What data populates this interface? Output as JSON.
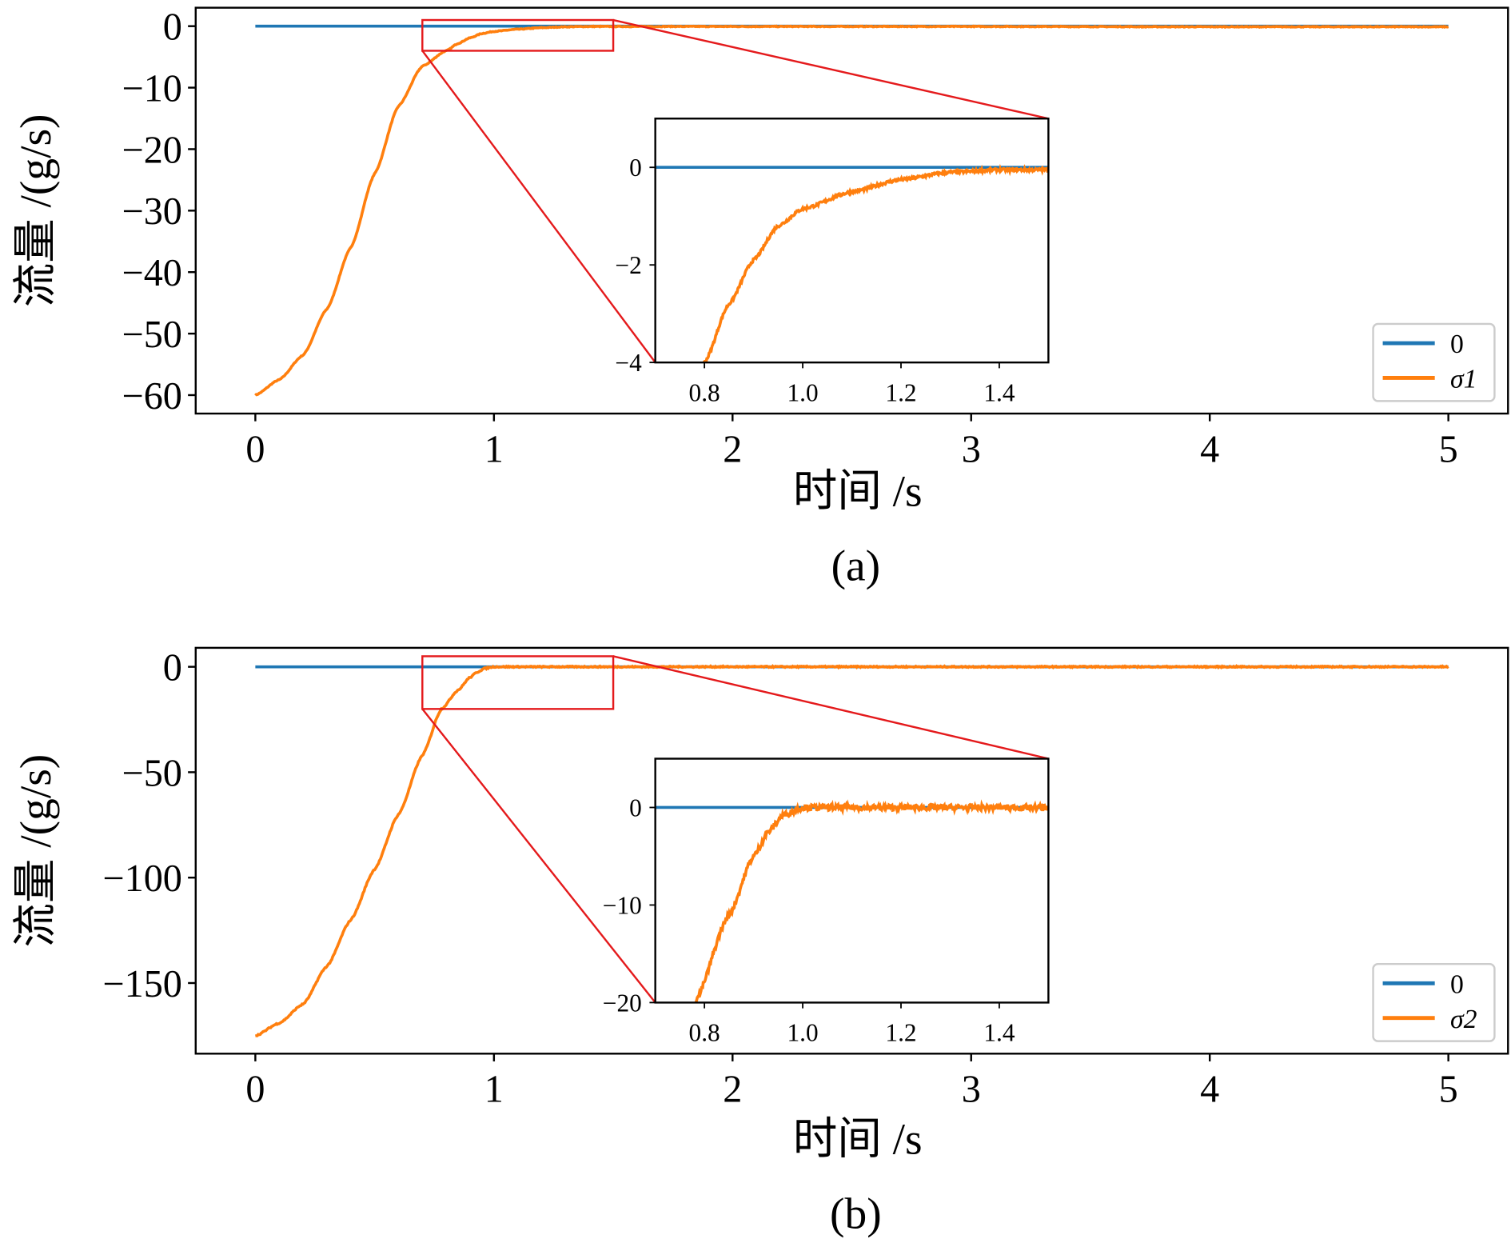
{
  "chart_data": [
    {
      "type": "line",
      "caption": "(a)",
      "xlabel": "时间 /s",
      "ylabel": "流量 /(g/s)",
      "xlim": [
        -0.25,
        5.25
      ],
      "ylim": [
        -63,
        3
      ],
      "xticks": [
        0,
        1,
        2,
        3,
        4,
        5
      ],
      "yticks": [
        0,
        -10,
        -20,
        -30,
        -40,
        -50,
        -60
      ],
      "ytick_labels": [
        "0",
        "−10",
        "−20",
        "−30",
        "−40",
        "−50",
        "−60"
      ],
      "legend": {
        "placement": "bottom-right",
        "entries": [
          "0",
          "σ1"
        ]
      },
      "series": [
        {
          "name": "0",
          "color": "#1f77b4",
          "x": [
            0,
            5
          ],
          "y": [
            0,
            0
          ]
        },
        {
          "name": "σ1",
          "color": "#ff7f0e",
          "x": [
            0,
            0.1,
            0.2,
            0.3,
            0.4,
            0.5,
            0.6,
            0.7,
            0.8,
            0.85,
            0.9,
            0.95,
            1.0,
            1.1,
            1.2,
            1.3,
            1.4,
            1.5,
            2.0,
            3.0,
            4.0,
            5.0
          ],
          "y": [
            -60,
            -57.5,
            -53.5,
            -46,
            -36,
            -24,
            -13,
            -6.5,
            -4,
            -2.8,
            -1.9,
            -1.2,
            -0.85,
            -0.5,
            -0.25,
            -0.1,
            -0.05,
            -0.05,
            -0.05,
            -0.05,
            -0.1,
            -0.1
          ]
        }
      ],
      "zoom_region": {
        "xlim": [
          0.7,
          1.5
        ],
        "ylim": [
          -4,
          1
        ]
      },
      "inset": {
        "xlim": [
          0.7,
          1.5
        ],
        "ylim": [
          -4,
          1
        ],
        "xticks": [
          0.8,
          1.0,
          1.2,
          1.4
        ],
        "xtick_labels": [
          "0.8",
          "1.0",
          "1.2",
          "1.4"
        ],
        "yticks": [
          0,
          -2,
          -4
        ],
        "ytick_labels": [
          "0",
          "−2",
          "−4"
        ]
      }
    },
    {
      "type": "line",
      "caption": "(b)",
      "xlabel": "时间 /s",
      "ylabel": "流量 /(g/s)",
      "xlim": [
        -0.25,
        5.25
      ],
      "ylim": [
        -183.5,
        9
      ],
      "xticks": [
        0,
        1,
        2,
        3,
        4,
        5
      ],
      "yticks": [
        0,
        -50,
        -100,
        -150
      ],
      "ytick_labels": [
        "0",
        "−50",
        "−100",
        "−150"
      ],
      "legend": {
        "placement": "bottom-right",
        "entries": [
          "0",
          "σ2"
        ]
      },
      "series": [
        {
          "name": "0",
          "color": "#1f77b4",
          "x": [
            0,
            5
          ],
          "y": [
            0,
            0
          ]
        },
        {
          "name": "σ2",
          "color": "#ff7f0e",
          "x": [
            0,
            0.1,
            0.2,
            0.3,
            0.4,
            0.5,
            0.6,
            0.7,
            0.78,
            0.85,
            0.9,
            0.93,
            0.96,
            1.0,
            1.5,
            2.0,
            3.0,
            4.0,
            5.0
          ],
          "y": [
            -175,
            -169,
            -160,
            -142,
            -120,
            -96,
            -70,
            -42,
            -20,
            -11,
            -5,
            -2.5,
            -0.8,
            0,
            0,
            0,
            0,
            0,
            0
          ]
        }
      ],
      "zoom_region": {
        "xlim": [
          0.7,
          1.5
        ],
        "ylim": [
          -20,
          5
        ]
      },
      "inset": {
        "xlim": [
          0.7,
          1.5
        ],
        "ylim": [
          -20,
          5
        ],
        "xticks": [
          0.8,
          1.0,
          1.2,
          1.4
        ],
        "xtick_labels": [
          "0.8",
          "1.0",
          "1.2",
          "1.4"
        ],
        "yticks": [
          0,
          -10,
          -20
        ],
        "ytick_labels": [
          "0",
          "−10",
          "−20"
        ]
      }
    }
  ]
}
